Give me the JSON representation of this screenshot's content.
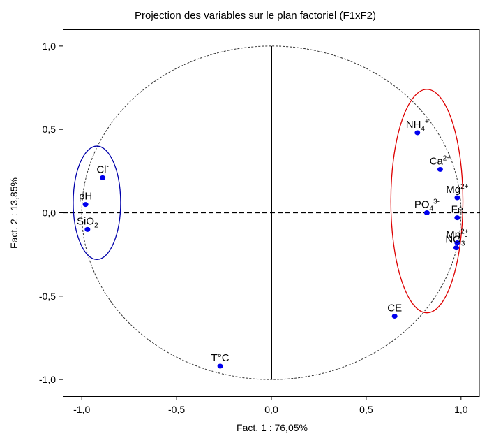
{
  "chart_data": {
    "type": "scatter",
    "title": "Projection des variables sur le plan factoriel (F1xF2)",
    "xlabel": "Fact. 1  : 76,05%",
    "ylabel": "Fact. 2  : 13,85%",
    "xlim": [
      -1.1,
      1.1
    ],
    "ylim": [
      -1.1,
      1.1
    ],
    "x_ticks": [
      {
        "value": -1.0,
        "label": "-1,0"
      },
      {
        "value": -0.5,
        "label": "-0,5"
      },
      {
        "value": 0.0,
        "label": "0,0"
      },
      {
        "value": 0.5,
        "label": "0,5"
      },
      {
        "value": 1.0,
        "label": "1,0"
      }
    ],
    "y_ticks": [
      {
        "value": 1.0,
        "label": "1,0"
      },
      {
        "value": 0.5,
        "label": "0,5"
      },
      {
        "value": 0.0,
        "label": "0,0"
      },
      {
        "value": -0.5,
        "label": "-0,5"
      },
      {
        "value": -1.0,
        "label": "-1,0"
      }
    ],
    "grid": false,
    "unit_circle": true,
    "point_color": "#0000ee",
    "points": [
      {
        "id": "cl",
        "main": "Cl",
        "sup": "-",
        "sub": "",
        "x": -0.89,
        "y": 0.21
      },
      {
        "id": "ph",
        "main": "pH",
        "sup": "",
        "sub": "",
        "x": -0.98,
        "y": 0.05
      },
      {
        "id": "sio2",
        "main": "SiO",
        "sup": "",
        "sub": "2",
        "x": -0.97,
        "y": -0.1
      },
      {
        "id": "nh4",
        "main": "NH",
        "sup": "+",
        "sub": "4",
        "x": 0.77,
        "y": 0.48
      },
      {
        "id": "ca",
        "main": "Ca",
        "sup": "2+",
        "sub": "",
        "x": 0.89,
        "y": 0.26
      },
      {
        "id": "mg",
        "main": "Mg",
        "sup": "2+",
        "sub": "",
        "x": 0.98,
        "y": 0.09
      },
      {
        "id": "po4",
        "main": "PO",
        "sup": "3-",
        "sub": "4",
        "x": 0.82,
        "y": 0.0
      },
      {
        "id": "fe",
        "main": "Fe",
        "sup": "",
        "sub": "",
        "x": 0.98,
        "y": -0.03
      },
      {
        "id": "mn",
        "main": "Mn",
        "sup": "2+",
        "sub": "",
        "x": 0.98,
        "y": -0.18
      },
      {
        "id": "no3",
        "main": "NO",
        "sup": "-",
        "sub": "3",
        "x": 0.975,
        "y": -0.21
      },
      {
        "id": "ce",
        "main": "CE",
        "sup": "",
        "sub": "",
        "x": 0.65,
        "y": -0.62
      },
      {
        "id": "tc",
        "main": "T°C",
        "sup": "",
        "sub": "",
        "x": -0.27,
        "y": -0.92
      }
    ],
    "groups": [
      {
        "name": "blue-ellipse",
        "color": "#0000aa",
        "center": [
          -0.92,
          0.06
        ],
        "radii": [
          0.125,
          0.34
        ]
      },
      {
        "name": "red-ellipse",
        "color": "#dd0000",
        "center": [
          0.82,
          0.07
        ],
        "radii": [
          0.19,
          0.67
        ]
      }
    ]
  }
}
